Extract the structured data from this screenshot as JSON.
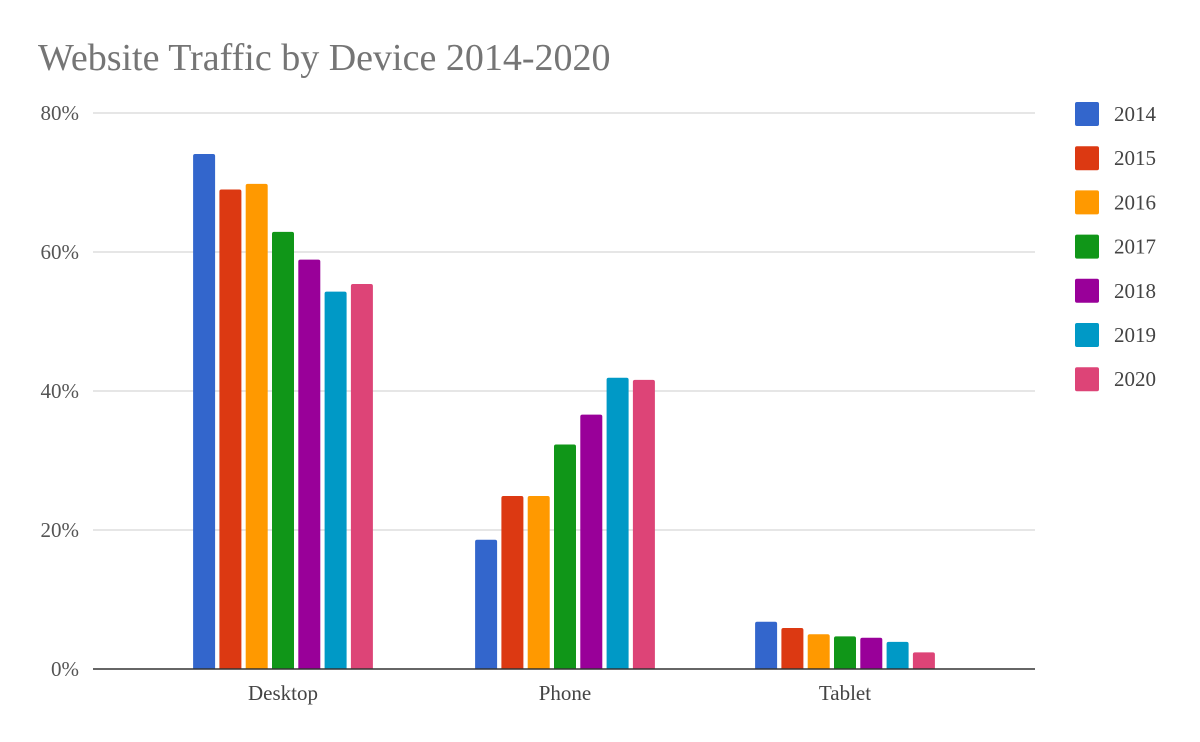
{
  "chart_data": {
    "type": "bar",
    "title": "Website Traffic by Device 2014-2020",
    "xlabel": "",
    "ylabel": "",
    "categories": [
      "Desktop",
      "Phone",
      "Tablet"
    ],
    "ylim": [
      0,
      80
    ],
    "yticks": [
      0,
      20,
      40,
      60,
      80
    ],
    "ytick_labels": [
      "0%",
      "20%",
      "40%",
      "60%",
      "80%"
    ],
    "grid": true,
    "legend_position": "right",
    "series": [
      {
        "name": "2014",
        "color": "#3366cc",
        "values": [
          74.1,
          18.6,
          6.8
        ]
      },
      {
        "name": "2015",
        "color": "#dc3912",
        "values": [
          69.0,
          24.9,
          5.9
        ]
      },
      {
        "name": "2016",
        "color": "#ff9900",
        "values": [
          69.8,
          24.9,
          5.0
        ]
      },
      {
        "name": "2017",
        "color": "#109618",
        "values": [
          62.9,
          32.3,
          4.7
        ]
      },
      {
        "name": "2018",
        "color": "#990099",
        "values": [
          58.9,
          36.6,
          4.5
        ]
      },
      {
        "name": "2019",
        "color": "#0099c6",
        "values": [
          54.3,
          41.9,
          3.9
        ]
      },
      {
        "name": "2020",
        "color": "#dd4477",
        "values": [
          55.4,
          41.6,
          2.4
        ]
      }
    ]
  }
}
